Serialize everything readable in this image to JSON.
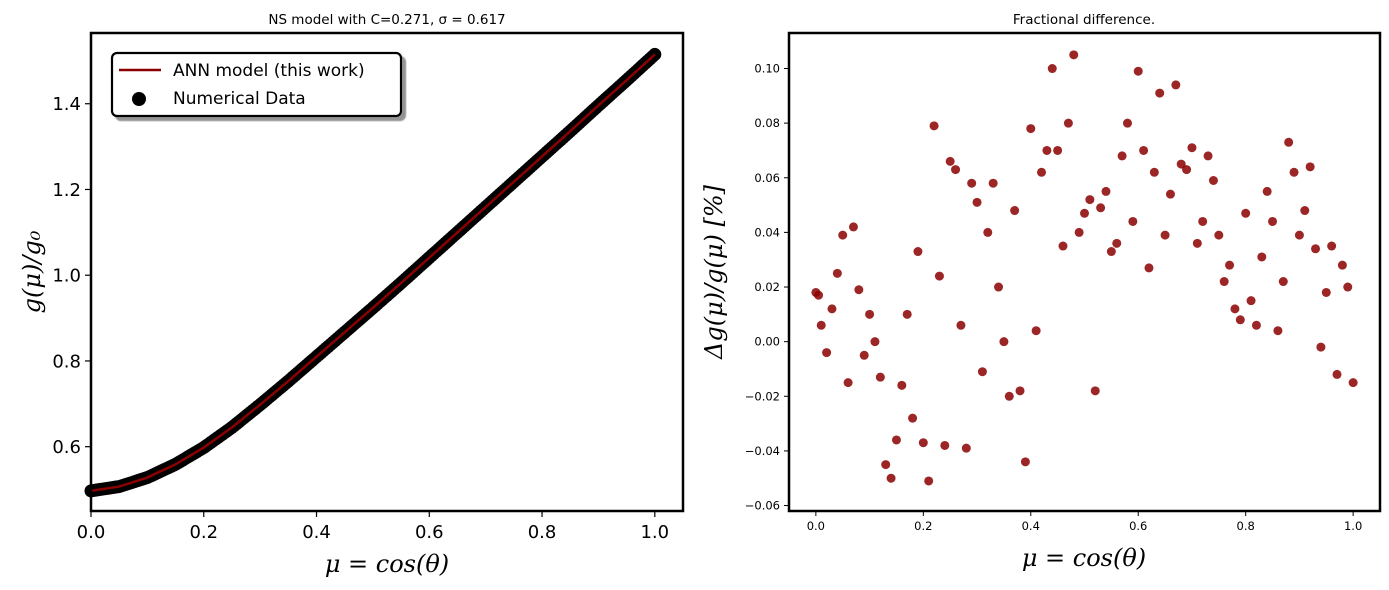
{
  "chart_data": [
    {
      "type": "line",
      "title": "NS model with C=0.271, σ = 0.617",
      "xlabel": "μ = cos(θ)",
      "ylabel": "g(μ)/g₀",
      "xlim": [
        0.0,
        1.05
      ],
      "ylim": [
        0.45,
        1.565
      ],
      "xticks": [
        0.0,
        0.2,
        0.4,
        0.6,
        0.8,
        1.0
      ],
      "xtick_labels": [
        "0.0",
        "0.2",
        "0.4",
        "0.6",
        "0.8",
        "1.0"
      ],
      "yticks": [
        0.6,
        0.8,
        1.0,
        1.2,
        1.4
      ],
      "ytick_labels": [
        "0.6",
        "0.8",
        "1.0",
        "1.2",
        "1.4"
      ],
      "grid": false,
      "legend_position": "top-left",
      "series": [
        {
          "name": "ANN model (this work)",
          "kind": "line",
          "color": "#8b0000",
          "x": [
            0.0,
            0.05,
            0.1,
            0.15,
            0.2,
            0.25,
            0.3,
            0.35,
            0.4,
            0.45,
            0.5,
            0.55,
            0.6,
            0.65,
            0.7,
            0.75,
            0.8,
            0.85,
            0.9,
            0.95,
            1.0
          ],
          "y": [
            0.497,
            0.507,
            0.528,
            0.559,
            0.598,
            0.645,
            0.698,
            0.753,
            0.81,
            0.867,
            0.924,
            0.982,
            1.041,
            1.1,
            1.159,
            1.218,
            1.277,
            1.336,
            1.396,
            1.455,
            1.515
          ]
        },
        {
          "name": "Numerical Data",
          "kind": "scatter",
          "color": "#000000",
          "x": [
            0.0,
            0.05,
            0.1,
            0.15,
            0.2,
            0.25,
            0.3,
            0.35,
            0.4,
            0.45,
            0.5,
            0.55,
            0.6,
            0.65,
            0.7,
            0.75,
            0.8,
            0.85,
            0.9,
            0.95,
            1.0
          ],
          "y": [
            0.497,
            0.507,
            0.528,
            0.559,
            0.598,
            0.645,
            0.698,
            0.753,
            0.81,
            0.867,
            0.924,
            0.982,
            1.041,
            1.1,
            1.159,
            1.218,
            1.277,
            1.336,
            1.396,
            1.455,
            1.515
          ]
        }
      ]
    },
    {
      "type": "scatter",
      "title": "Fractional difference.",
      "xlabel": "μ = cos(θ)",
      "ylabel": "Δg(μ)/g(μ)  [%]",
      "xlim": [
        -0.05,
        1.05
      ],
      "ylim": [
        -0.062,
        0.113
      ],
      "xticks": [
        0.0,
        0.2,
        0.4,
        0.6,
        0.8,
        1.0
      ],
      "xtick_labels": [
        "0.0",
        "0.2",
        "0.4",
        "0.6",
        "0.8",
        "1.0"
      ],
      "yticks": [
        -0.06,
        -0.04,
        -0.02,
        0.0,
        0.02,
        0.04,
        0.06,
        0.08,
        0.1
      ],
      "ytick_labels": [
        "−0.06",
        "−0.04",
        "−0.02",
        "0.00",
        "0.02",
        "0.04",
        "0.06",
        "0.08",
        "0.10"
      ],
      "grid": false,
      "series": [
        {
          "color": "#8b0000",
          "x": [
            0.0,
            0.005,
            0.01,
            0.02,
            0.03,
            0.04,
            0.05,
            0.06,
            0.07,
            0.08,
            0.09,
            0.1,
            0.11,
            0.12,
            0.13,
            0.14,
            0.15,
            0.16,
            0.17,
            0.18,
            0.19,
            0.2,
            0.21,
            0.22,
            0.23,
            0.24,
            0.25,
            0.26,
            0.27,
            0.28,
            0.29,
            0.3,
            0.31,
            0.32,
            0.33,
            0.34,
            0.35,
            0.36,
            0.37,
            0.38,
            0.39,
            0.4,
            0.41,
            0.42,
            0.43,
            0.44,
            0.45,
            0.46,
            0.47,
            0.48,
            0.49,
            0.5,
            0.51,
            0.52,
            0.53,
            0.54,
            0.55,
            0.56,
            0.57,
            0.58,
            0.59,
            0.6,
            0.61,
            0.62,
            0.63,
            0.64,
            0.65,
            0.66,
            0.67,
            0.68,
            0.69,
            0.7,
            0.71,
            0.72,
            0.73,
            0.74,
            0.75,
            0.76,
            0.77,
            0.78,
            0.79,
            0.8,
            0.81,
            0.82,
            0.83,
            0.84,
            0.85,
            0.86,
            0.87,
            0.88,
            0.89,
            0.9,
            0.91,
            0.92,
            0.93,
            0.94,
            0.95,
            0.96,
            0.97,
            0.98,
            0.99,
            1.0
          ],
          "y": [
            0.018,
            0.017,
            0.006,
            -0.004,
            0.012,
            0.025,
            0.039,
            -0.015,
            0.042,
            0.019,
            -0.005,
            0.01,
            0.0,
            -0.013,
            -0.045,
            -0.05,
            -0.036,
            -0.016,
            0.01,
            -0.028,
            0.033,
            -0.037,
            -0.051,
            0.079,
            0.024,
            -0.038,
            0.066,
            0.063,
            0.006,
            -0.039,
            0.058,
            0.051,
            -0.011,
            0.04,
            0.058,
            0.02,
            0.0,
            -0.02,
            0.048,
            -0.018,
            -0.044,
            0.078,
            0.004,
            0.062,
            0.07,
            0.1,
            0.07,
            0.035,
            0.08,
            0.105,
            0.04,
            0.047,
            0.052,
            -0.018,
            0.049,
            0.055,
            0.033,
            0.036,
            0.068,
            0.08,
            0.044,
            0.099,
            0.07,
            0.027,
            0.062,
            0.091,
            0.039,
            0.054,
            0.094,
            0.065,
            0.063,
            0.071,
            0.036,
            0.044,
            0.068,
            0.059,
            0.039,
            0.022,
            0.028,
            0.012,
            0.008,
            0.047,
            0.015,
            0.006,
            0.031,
            0.055,
            0.044,
            0.004,
            0.022,
            0.073,
            0.062,
            0.039,
            0.048,
            0.064,
            0.034,
            -0.002,
            0.018,
            0.035,
            -0.012,
            0.028,
            0.02,
            -0.015
          ]
        }
      ]
    }
  ]
}
